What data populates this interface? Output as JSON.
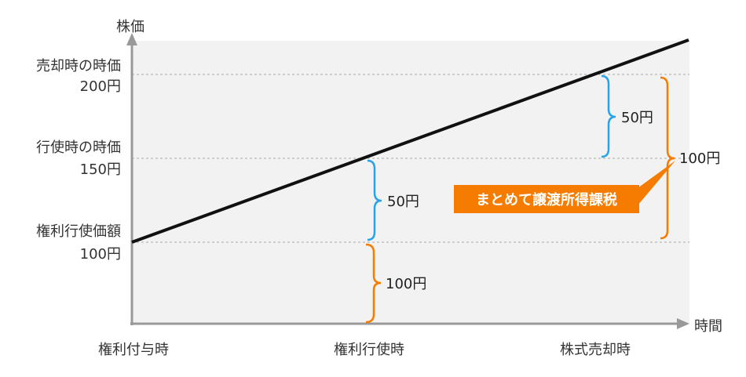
{
  "axes": {
    "y_label": "株価",
    "x_label": "時間"
  },
  "y_labels": {
    "sale_title": "売却時の時価",
    "sale_value": "200円",
    "exercise_title": "行使時の時価",
    "exercise_value": "150円",
    "strike_title": "権利行使価額",
    "strike_value": "100円"
  },
  "x_ticks": [
    "権利付与時",
    "権利行使時",
    "株式売却時"
  ],
  "braces": {
    "base_amount": "100円",
    "exercise_gain": "50円",
    "sale_gain": "50円",
    "total_gain": "100円"
  },
  "callout": {
    "text": "まとめて譲渡所得課税",
    "color": "#f57c00"
  },
  "colors": {
    "blue_brace": "#2aa2e8",
    "orange_brace": "#f57c00",
    "plot_bg": "#f2f2f2",
    "axis": "#999999",
    "line": "#111111"
  }
}
